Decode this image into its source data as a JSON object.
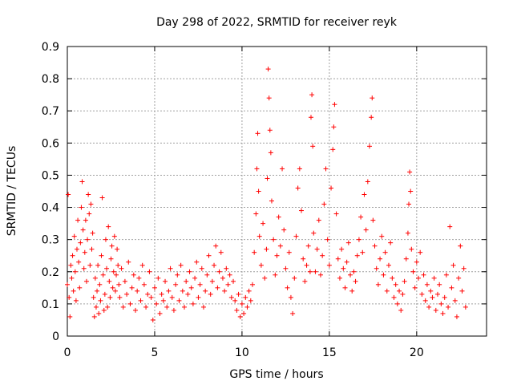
{
  "chart_data": {
    "type": "scatter",
    "title": "Day 298 of 2022, SRMTID for receiver reyk",
    "xlabel": "GPS time / hours",
    "ylabel": "SRMTID / TECUs",
    "xlim": [
      0,
      24
    ],
    "ylim": [
      0,
      0.9
    ],
    "xticks": [
      0,
      5,
      10,
      15,
      20
    ],
    "xtick_labels": [
      "0",
      "5",
      "10",
      "15",
      "20"
    ],
    "yticks": [
      0,
      0.1,
      0.2,
      0.3,
      0.4,
      0.5,
      0.6,
      0.7,
      0.8,
      0.9
    ],
    "ytick_labels": [
      "0",
      "0.1",
      "0.2",
      "0.3",
      "0.4",
      "0.5",
      "0.6",
      "0.7",
      "0.8",
      "0.9"
    ],
    "grid": true,
    "marker": "plus",
    "color": "#ff0000",
    "series": [
      {
        "name": "SRMTID",
        "points": [
          [
            0.0,
            0.16
          ],
          [
            0.05,
            0.44
          ],
          [
            0.1,
            0.12
          ],
          [
            0.15,
            0.06
          ],
          [
            0.2,
            0.22
          ],
          [
            0.25,
            0.18
          ],
          [
            0.3,
            0.25
          ],
          [
            0.35,
            0.14
          ],
          [
            0.4,
            0.31
          ],
          [
            0.45,
            0.2
          ],
          [
            0.5,
            0.11
          ],
          [
            0.55,
            0.27
          ],
          [
            0.6,
            0.36
          ],
          [
            0.65,
            0.23
          ],
          [
            0.7,
            0.15
          ],
          [
            0.75,
            0.29
          ],
          [
            0.8,
            0.4
          ],
          [
            0.85,
            0.48
          ],
          [
            0.9,
            0.33
          ],
          [
            0.95,
            0.21
          ],
          [
            1.0,
            0.26
          ],
          [
            1.05,
            0.36
          ],
          [
            1.1,
            0.17
          ],
          [
            1.15,
            0.3
          ],
          [
            1.2,
            0.44
          ],
          [
            1.25,
            0.38
          ],
          [
            1.3,
            0.22
          ],
          [
            1.35,
            0.41
          ],
          [
            1.4,
            0.27
          ],
          [
            1.45,
            0.32
          ],
          [
            1.5,
            0.12
          ],
          [
            1.55,
            0.06
          ],
          [
            1.6,
            0.18
          ],
          [
            1.65,
            0.09
          ],
          [
            1.7,
            0.14
          ],
          [
            1.75,
            0.22
          ],
          [
            1.8,
            0.07
          ],
          [
            1.85,
            0.16
          ],
          [
            1.9,
            0.11
          ],
          [
            1.95,
            0.25
          ],
          [
            2.0,
            0.43
          ],
          [
            2.05,
            0.19
          ],
          [
            2.1,
            0.08
          ],
          [
            2.15,
            0.13
          ],
          [
            2.2,
            0.3
          ],
          [
            2.25,
            0.21
          ],
          [
            2.3,
            0.09
          ],
          [
            2.35,
            0.34
          ],
          [
            2.4,
            0.17
          ],
          [
            2.45,
            0.12
          ],
          [
            2.5,
            0.24
          ],
          [
            2.55,
            0.28
          ],
          [
            2.6,
            0.15
          ],
          [
            2.65,
            0.2
          ],
          [
            2.7,
            0.31
          ],
          [
            2.75,
            0.14
          ],
          [
            2.8,
            0.19
          ],
          [
            2.85,
            0.27
          ],
          [
            2.9,
            0.22
          ],
          [
            2.95,
            0.16
          ],
          [
            3.0,
            0.12
          ],
          [
            3.1,
            0.21
          ],
          [
            3.2,
            0.09
          ],
          [
            3.3,
            0.17
          ],
          [
            3.4,
            0.13
          ],
          [
            3.5,
            0.23
          ],
          [
            3.6,
            0.1
          ],
          [
            3.7,
            0.15
          ],
          [
            3.8,
            0.19
          ],
          [
            3.9,
            0.08
          ],
          [
            4.0,
            0.14
          ],
          [
            4.1,
            0.18
          ],
          [
            4.2,
            0.11
          ],
          [
            4.3,
            0.22
          ],
          [
            4.4,
            0.16
          ],
          [
            4.5,
            0.09
          ],
          [
            4.6,
            0.13
          ],
          [
            4.7,
            0.2
          ],
          [
            4.8,
            0.12
          ],
          [
            4.9,
            0.05
          ],
          [
            5.0,
            0.15
          ],
          [
            5.1,
            0.1
          ],
          [
            5.2,
            0.18
          ],
          [
            5.3,
            0.07
          ],
          [
            5.4,
            0.13
          ],
          [
            5.5,
            0.11
          ],
          [
            5.6,
            0.17
          ],
          [
            5.7,
            0.09
          ],
          [
            5.8,
            0.14
          ],
          [
            5.9,
            0.21
          ],
          [
            6.0,
            0.12
          ],
          [
            6.1,
            0.08
          ],
          [
            6.2,
            0.16
          ],
          [
            6.3,
            0.19
          ],
          [
            6.4,
            0.11
          ],
          [
            6.5,
            0.22
          ],
          [
            6.6,
            0.14
          ],
          [
            6.7,
            0.09
          ],
          [
            6.8,
            0.17
          ],
          [
            6.9,
            0.13
          ],
          [
            7.0,
            0.2
          ],
          [
            7.1,
            0.15
          ],
          [
            7.2,
            0.1
          ],
          [
            7.3,
            0.18
          ],
          [
            7.4,
            0.23
          ],
          [
            7.5,
            0.12
          ],
          [
            7.6,
            0.16
          ],
          [
            7.7,
            0.21
          ],
          [
            7.8,
            0.09
          ],
          [
            7.9,
            0.14
          ],
          [
            8.0,
            0.19
          ],
          [
            8.1,
            0.25
          ],
          [
            8.2,
            0.13
          ],
          [
            8.3,
            0.17
          ],
          [
            8.4,
            0.22
          ],
          [
            8.5,
            0.28
          ],
          [
            8.6,
            0.15
          ],
          [
            8.7,
            0.2
          ],
          [
            8.8,
            0.26
          ],
          [
            8.9,
            0.18
          ],
          [
            9.0,
            0.14
          ],
          [
            9.1,
            0.21
          ],
          [
            9.2,
            0.16
          ],
          [
            9.3,
            0.19
          ],
          [
            9.4,
            0.12
          ],
          [
            9.5,
            0.17
          ],
          [
            9.6,
            0.11
          ],
          [
            9.7,
            0.08
          ],
          [
            9.8,
            0.13
          ],
          [
            9.9,
            0.06
          ],
          [
            10.0,
            0.1
          ],
          [
            10.1,
            0.07
          ],
          [
            10.2,
            0.12
          ],
          [
            10.3,
            0.09
          ],
          [
            10.4,
            0.14
          ],
          [
            10.5,
            0.11
          ],
          [
            10.6,
            0.16
          ],
          [
            10.7,
            0.26
          ],
          [
            10.8,
            0.38
          ],
          [
            10.85,
            0.52
          ],
          [
            10.9,
            0.63
          ],
          [
            10.95,
            0.45
          ],
          [
            11.0,
            0.31
          ],
          [
            11.1,
            0.22
          ],
          [
            11.2,
            0.35
          ],
          [
            11.3,
            0.18
          ],
          [
            11.4,
            0.27
          ],
          [
            11.45,
            0.49
          ],
          [
            11.5,
            0.83
          ],
          [
            11.55,
            0.74
          ],
          [
            11.6,
            0.64
          ],
          [
            11.65,
            0.57
          ],
          [
            11.7,
            0.42
          ],
          [
            11.8,
            0.3
          ],
          [
            11.9,
            0.19
          ],
          [
            12.0,
            0.25
          ],
          [
            12.1,
            0.37
          ],
          [
            12.2,
            0.28
          ],
          [
            12.3,
            0.52
          ],
          [
            12.4,
            0.33
          ],
          [
            12.5,
            0.21
          ],
          [
            12.6,
            0.15
          ],
          [
            12.7,
            0.26
          ],
          [
            12.8,
            0.12
          ],
          [
            12.9,
            0.07
          ],
          [
            13.0,
            0.18
          ],
          [
            13.1,
            0.31
          ],
          [
            13.2,
            0.46
          ],
          [
            13.3,
            0.52
          ],
          [
            13.4,
            0.39
          ],
          [
            13.5,
            0.24
          ],
          [
            13.6,
            0.17
          ],
          [
            13.7,
            0.22
          ],
          [
            13.8,
            0.28
          ],
          [
            13.9,
            0.2
          ],
          [
            13.95,
            0.68
          ],
          [
            14.0,
            0.75
          ],
          [
            14.05,
            0.59
          ],
          [
            14.1,
            0.32
          ],
          [
            14.2,
            0.2
          ],
          [
            14.3,
            0.27
          ],
          [
            14.4,
            0.36
          ],
          [
            14.5,
            0.19
          ],
          [
            14.6,
            0.25
          ],
          [
            14.7,
            0.41
          ],
          [
            14.8,
            0.52
          ],
          [
            14.9,
            0.3
          ],
          [
            15.0,
            0.22
          ],
          [
            15.1,
            0.46
          ],
          [
            15.2,
            0.58
          ],
          [
            15.25,
            0.65
          ],
          [
            15.3,
            0.72
          ],
          [
            15.4,
            0.38
          ],
          [
            15.5,
            0.24
          ],
          [
            15.6,
            0.18
          ],
          [
            15.7,
            0.27
          ],
          [
            15.8,
            0.21
          ],
          [
            15.9,
            0.15
          ],
          [
            16.0,
            0.23
          ],
          [
            16.1,
            0.29
          ],
          [
            16.2,
            0.19
          ],
          [
            16.3,
            0.14
          ],
          [
            16.4,
            0.2
          ],
          [
            16.5,
            0.17
          ],
          [
            16.6,
            0.25
          ],
          [
            16.7,
            0.3
          ],
          [
            16.8,
            0.37
          ],
          [
            16.9,
            0.26
          ],
          [
            17.0,
            0.44
          ],
          [
            17.1,
            0.33
          ],
          [
            17.2,
            0.48
          ],
          [
            17.3,
            0.59
          ],
          [
            17.4,
            0.68
          ],
          [
            17.45,
            0.74
          ],
          [
            17.5,
            0.36
          ],
          [
            17.6,
            0.28
          ],
          [
            17.7,
            0.21
          ],
          [
            17.8,
            0.16
          ],
          [
            17.9,
            0.24
          ],
          [
            18.0,
            0.31
          ],
          [
            18.1,
            0.19
          ],
          [
            18.2,
            0.26
          ],
          [
            18.3,
            0.14
          ],
          [
            18.4,
            0.22
          ],
          [
            18.5,
            0.29
          ],
          [
            18.6,
            0.18
          ],
          [
            18.7,
            0.12
          ],
          [
            18.8,
            0.16
          ],
          [
            18.9,
            0.1
          ],
          [
            19.0,
            0.14
          ],
          [
            19.1,
            0.08
          ],
          [
            19.2,
            0.13
          ],
          [
            19.3,
            0.17
          ],
          [
            19.4,
            0.24
          ],
          [
            19.5,
            0.32
          ],
          [
            19.55,
            0.41
          ],
          [
            19.6,
            0.51
          ],
          [
            19.65,
            0.45
          ],
          [
            19.7,
            0.27
          ],
          [
            19.8,
            0.2
          ],
          [
            19.9,
            0.15
          ],
          [
            20.0,
            0.23
          ],
          [
            20.1,
            0.18
          ],
          [
            20.2,
            0.26
          ],
          [
            20.3,
            0.13
          ],
          [
            20.4,
            0.19
          ],
          [
            20.5,
            0.11
          ],
          [
            20.6,
            0.16
          ],
          [
            20.7,
            0.09
          ],
          [
            20.8,
            0.14
          ],
          [
            20.9,
            0.12
          ],
          [
            21.0,
            0.18
          ],
          [
            21.1,
            0.08
          ],
          [
            21.2,
            0.13
          ],
          [
            21.3,
            0.16
          ],
          [
            21.4,
            0.1
          ],
          [
            21.5,
            0.07
          ],
          [
            21.6,
            0.12
          ],
          [
            21.7,
            0.19
          ],
          [
            21.8,
            0.09
          ],
          [
            21.9,
            0.34
          ],
          [
            22.0,
            0.15
          ],
          [
            22.1,
            0.22
          ],
          [
            22.2,
            0.11
          ],
          [
            22.3,
            0.06
          ],
          [
            22.4,
            0.18
          ],
          [
            22.5,
            0.28
          ],
          [
            22.6,
            0.14
          ],
          [
            22.7,
            0.21
          ],
          [
            22.8,
            0.09
          ]
        ]
      }
    ]
  }
}
